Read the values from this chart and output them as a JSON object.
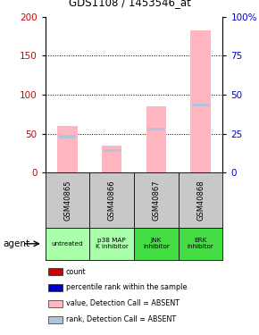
{
  "title": "GDS1108 / 1453546_at",
  "samples": [
    "GSM40865",
    "GSM40866",
    "GSM40867",
    "GSM40868"
  ],
  "agents": [
    "untreated",
    "p38 MAP\nK inhibitor",
    "JNK\ninhibitor",
    "ERK\ninhibitor"
  ],
  "agent_colors": [
    "#AAFFAA",
    "#AAFFAA",
    "#44DD44",
    "#44DD44"
  ],
  "sample_bg": "#C8C8C8",
  "pink_bar_values": [
    60,
    35,
    85,
    182
  ],
  "blue_marker_values": [
    46,
    28,
    56,
    87
  ],
  "left_ylim": [
    0,
    200
  ],
  "right_ylim": [
    0,
    100
  ],
  "left_yticks": [
    0,
    50,
    100,
    150,
    200
  ],
  "right_yticks": [
    0,
    25,
    50,
    75,
    100
  ],
  "right_yticklabels": [
    "0",
    "25",
    "50",
    "75",
    "100%"
  ],
  "left_color": "#CC0000",
  "right_color": "#0000CC",
  "legend_items": [
    {
      "color": "#CC0000",
      "label": "count"
    },
    {
      "color": "#0000CC",
      "label": "percentile rank within the sample"
    },
    {
      "color": "#FFB6C1",
      "label": "value, Detection Call = ABSENT"
    },
    {
      "color": "#B0C4DE",
      "label": "rank, Detection Call = ABSENT"
    }
  ]
}
